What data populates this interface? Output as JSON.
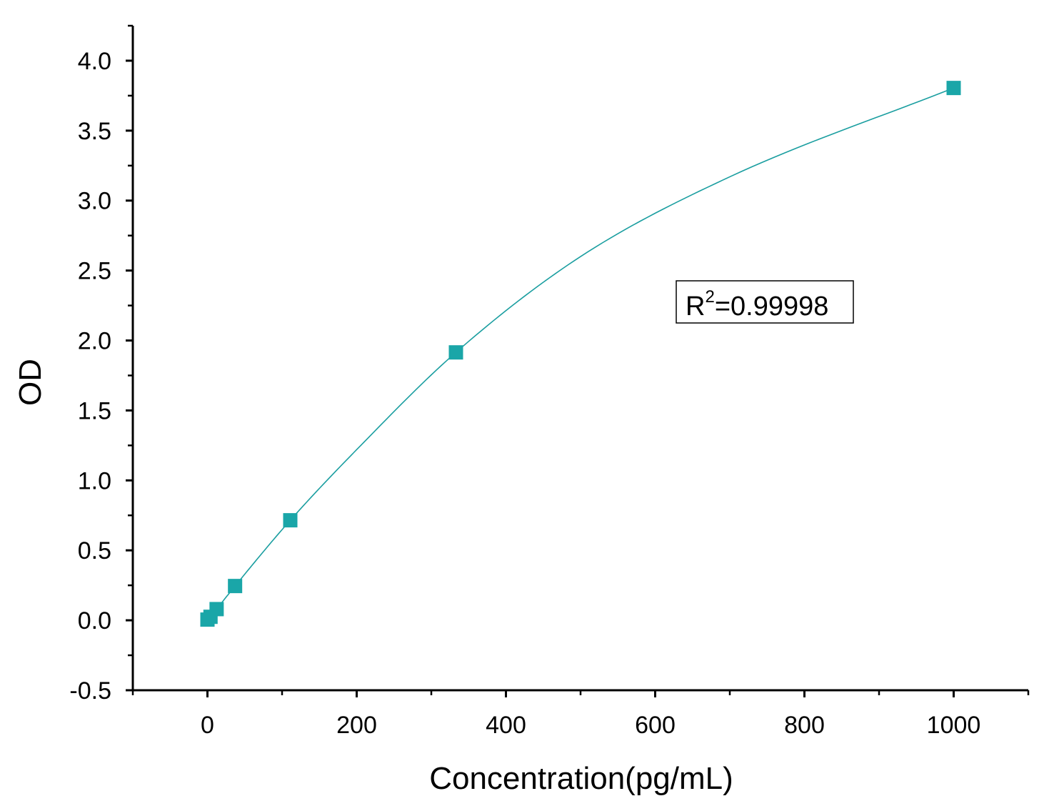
{
  "chart_data": {
    "type": "scatter",
    "title": "",
    "xlabel": "Concentration(pg/mL)",
    "ylabel": "OD",
    "xlim": [
      -100,
      1100
    ],
    "ylim": [
      -0.5,
      4.25
    ],
    "x_major_ticks": [
      0,
      200,
      400,
      600,
      800,
      1000
    ],
    "x_tick_labels": [
      "0",
      "200",
      "400",
      "600",
      "800",
      "1000"
    ],
    "x_minor_ticks": [
      -100,
      100,
      300,
      500,
      700,
      900,
      1100
    ],
    "y_major_ticks": [
      -0.5,
      0.0,
      0.5,
      1.0,
      1.5,
      2.0,
      2.5,
      3.0,
      3.5,
      4.0
    ],
    "y_tick_labels": [
      "-0.5",
      "0.0",
      "0.5",
      "1.0",
      "1.5",
      "2.0",
      "2.5",
      "3.0",
      "3.5",
      "4.0"
    ],
    "y_minor_ticks": [
      -0.25,
      0.25,
      0.75,
      1.25,
      1.75,
      2.25,
      2.75,
      3.25,
      3.75,
      4.25
    ],
    "grid": false,
    "legend": "none",
    "series": [
      {
        "marker": "square",
        "color": "#1aa6a8",
        "x": [
          0,
          4.1,
          12.3,
          37,
          111,
          333,
          1000
        ],
        "y": [
          0.005,
          0.025,
          0.08,
          0.245,
          0.715,
          1.915,
          3.805
        ]
      }
    ],
    "fit_curve": {
      "color": "#1a9ea0",
      "x": [
        0,
        4.1,
        12.3,
        37,
        111,
        200,
        333,
        500,
        700,
        1000
      ],
      "y": [
        0.005,
        0.025,
        0.08,
        0.245,
        0.715,
        1.22,
        1.915,
        2.6,
        3.17,
        3.805
      ]
    },
    "annotation": {
      "base": "R",
      "sup": "2",
      "rest": "=0.99998"
    }
  }
}
